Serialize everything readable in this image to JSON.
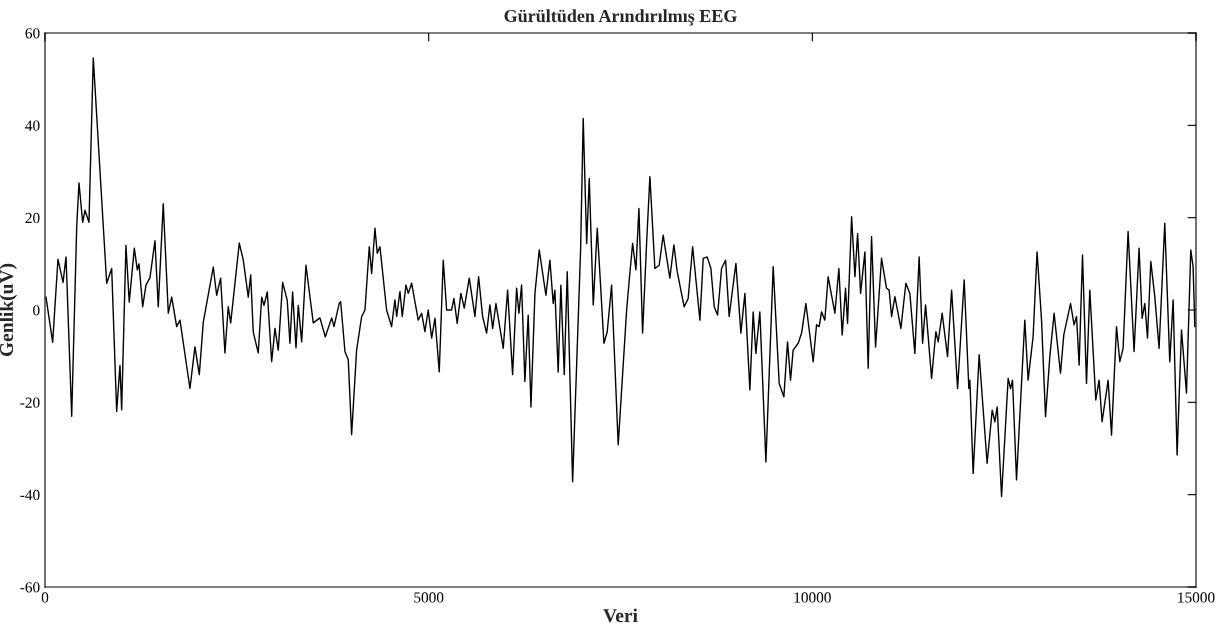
{
  "chart_data": {
    "type": "line",
    "title": "Gürültüden Arındırılmış EEG",
    "xlabel": "Veri",
    "ylabel": "Genlik(uV)",
    "xlim": [
      0,
      15000
    ],
    "ylim": [
      -60,
      60
    ],
    "xticks": [
      0,
      5000,
      10000,
      15000
    ],
    "yticks": [
      -60,
      -40,
      -20,
      0,
      20,
      40,
      60
    ],
    "grid": false,
    "legend": false,
    "marker": "none",
    "line_style": "solid",
    "series": [
      {
        "color": "#000000",
        "x": [
          13,
          100,
          169,
          235,
          274,
          348,
          413,
          443,
          491,
          521,
          573,
          629,
          804,
          869,
          934,
          977,
          999,
          1055,
          1098,
          1164,
          1203,
          1225,
          1273,
          1316,
          1368,
          1433,
          1476,
          1541,
          1607,
          1651,
          1716,
          1759,
          1889,
          1954,
          2011,
          2063,
          2193,
          2237,
          2289,
          2345,
          2388,
          2420,
          2532,
          2584,
          2649,
          2681,
          2714,
          2779,
          2824,
          2854,
          2897,
          2954,
          2997,
          3040,
          3097,
          3157,
          3192,
          3227,
          3271,
          3301,
          3345,
          3401,
          3496,
          3583,
          3653,
          3736,
          3766,
          3835,
          3853,
          3909,
          3952,
          3996,
          4061,
          4127,
          4170,
          4226,
          4257,
          4300,
          4330,
          4365,
          4452,
          4517,
          4560,
          4583,
          4626,
          4656,
          4704,
          4734,
          4778,
          4864,
          4908,
          4951,
          4994,
          5039,
          5082,
          5138,
          5190,
          5234,
          5299,
          5329,
          5372,
          5420,
          5464,
          5529,
          5603,
          5651,
          5703,
          5755,
          5798,
          5834,
          5877,
          5972,
          6029,
          6094,
          6146,
          6176,
          6211,
          6254,
          6297,
          6333,
          6385,
          6441,
          6528,
          6580,
          6623,
          6645,
          6688,
          6723,
          6767,
          6806,
          6876,
          6980,
          7014,
          7059,
          7093,
          7145,
          7197,
          7284,
          7327,
          7384,
          7470,
          7580,
          7614,
          7658,
          7701,
          7740,
          7788,
          7840,
          7883,
          7948,
          8004,
          8056,
          8143,
          8196,
          8239,
          8330,
          8382,
          8440,
          8535,
          8578,
          8630,
          8678,
          8721,
          8765,
          8817,
          8870,
          8916,
          9004,
          9069,
          9121,
          9186,
          9229,
          9264,
          9316,
          9395,
          9490,
          9568,
          9629,
          9677,
          9716,
          9750,
          9816,
          9860,
          9916,
          10011,
          10055,
          10089,
          10120,
          10163,
          10206,
          10294,
          10346,
          10389,
          10433,
          10459,
          10512,
          10555,
          10590,
          10629,
          10685,
          10728,
          10772,
          10824,
          10902,
          10967,
          11001,
          11033,
          11076,
          11154,
          11219,
          11271,
          11336,
          11392,
          11437,
          11476,
          11554,
          11610,
          11640,
          11692,
          11762,
          11815,
          11893,
          11979,
          12040,
          12053,
          12096,
          12174,
          12278,
          12344,
          12379,
          12409,
          12466,
          12552,
          12583,
          12609,
          12661,
          12769,
          12812,
          12877,
          12929,
          12987,
          13039,
          13095,
          13151,
          13234,
          13277,
          13365,
          13411,
          13443,
          13477,
          13521,
          13573,
          13616,
          13694,
          13737,
          13776,
          13855,
          13899,
          13964,
          14007,
          14050,
          14115,
          14193,
          14258,
          14298,
          14333,
          14368,
          14411,
          14463,
          14519,
          14593,
          14658,
          14702,
          14754,
          14811,
          14876,
          14932,
          14962,
          14985
        ],
        "values": [
          2.8,
          -7,
          11,
          6,
          11.5,
          -23,
          18,
          27.5,
          19,
          21.6,
          19,
          54.6,
          5.8,
          9,
          -22,
          -12,
          -21.6,
          14,
          1.7,
          13.4,
          8.7,
          10,
          0.7,
          5.4,
          7,
          15,
          0.7,
          23,
          -0.7,
          2.8,
          -3.6,
          -2.2,
          -17,
          -8,
          -14,
          -2.6,
          9.3,
          3.2,
          6.9,
          -9.3,
          0.7,
          -2.8,
          14.5,
          10.8,
          2.8,
          7.6,
          -4.8,
          -9.3,
          2.8,
          1,
          3.9,
          -11.2,
          -4,
          -8.7,
          6,
          2.1,
          -7.2,
          3.9,
          -8.2,
          1,
          -6.9,
          9.7,
          -2.8,
          -1.7,
          -5.8,
          -1.7,
          -3.6,
          1.5,
          1.8,
          -9,
          -10.8,
          -27,
          -8.7,
          -1.4,
          0,
          13.7,
          7.9,
          17.7,
          12.3,
          13.7,
          0,
          -3.6,
          2.2,
          -1.4,
          4,
          -1.4,
          5.4,
          3.6,
          5.8,
          -2.2,
          -0.7,
          -4.7,
          0,
          -6.1,
          -1.8,
          -13.4,
          10.8,
          0,
          0,
          2.5,
          -2.9,
          3.6,
          0.4,
          6.9,
          -1.4,
          7.2,
          -1.4,
          -5,
          1.1,
          -4,
          1.4,
          -8.3,
          4.3,
          -14,
          4.7,
          -0.7,
          5.4,
          -15.5,
          -1.1,
          -21,
          3.6,
          13,
          3.2,
          10.8,
          1.4,
          4.3,
          -13.4,
          5.4,
          -14,
          8.3,
          -37.2,
          13,
          41.5,
          14.4,
          28.5,
          1.1,
          17.7,
          -7.2,
          -4.7,
          5.4,
          -29.2,
          0,
          6.5,
          14.4,
          8.7,
          22,
          -5,
          14.4,
          28.9,
          9,
          9.7,
          16.2,
          6.9,
          14.1,
          8.3,
          0.7,
          2.5,
          13.7,
          -2.2,
          11.2,
          11.5,
          9,
          0.7,
          -1.1,
          9,
          10.8,
          -1.4,
          10.1,
          -5,
          3.6,
          -17.3,
          -0.4,
          -9.4,
          -0.4,
          -32.9,
          9.4,
          -15.9,
          -18.8,
          -6.9,
          -15.2,
          -8.7,
          -7.2,
          -5,
          1.4,
          -11.2,
          -3.2,
          -3.6,
          -0.4,
          -2.2,
          7.2,
          -0.7,
          9,
          -5.4,
          4.7,
          -2.9,
          20.2,
          7.2,
          16.6,
          3.6,
          12.6,
          -12.6,
          15.9,
          -8,
          11.2,
          4.7,
          4.3,
          -1.4,
          2.9,
          -4,
          5.8,
          3.6,
          -9.4,
          11.5,
          -7.2,
          1.1,
          -14.8,
          -4.7,
          -6.9,
          -0.7,
          -10.1,
          4.3,
          -17,
          6.5,
          -17,
          -15.2,
          -35.4,
          -9.7,
          -33.2,
          -21.7,
          -24.2,
          -21,
          -40.4,
          -14.8,
          -17,
          -15.2,
          -36.8,
          -2.2,
          -15.2,
          -5.8,
          12.6,
          -2.2,
          -23.1,
          -10.1,
          -0.7,
          -13.7,
          -5.4,
          1.4,
          -3.2,
          -1.4,
          -11.9,
          11.9,
          -15.9,
          4.3,
          -19.5,
          -15.2,
          -24.2,
          -15.2,
          -27.1,
          -3.6,
          -11.2,
          -8.3,
          17,
          -9,
          13.4,
          -1.8,
          1.4,
          -6.1,
          10.5,
          2.9,
          -8.3,
          18.8,
          -11.2,
          2.2,
          -31.4,
          -4.3,
          -18,
          13,
          9.4,
          -3.6
        ]
      }
    ]
  }
}
